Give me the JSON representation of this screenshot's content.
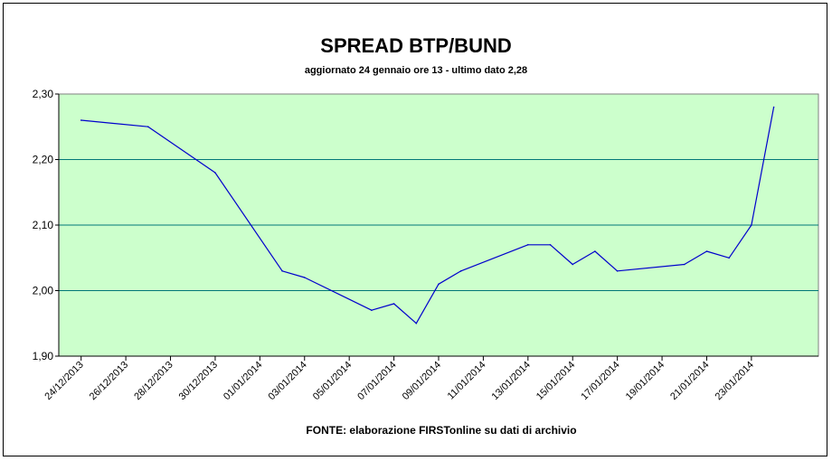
{
  "chart_data": {
    "type": "line",
    "title": "SPREAD BTP/BUND",
    "subtitle": "aggiornato 24 gennaio ore 13 - ultimo dato 2,28",
    "source": "FONTE: elaborazione FIRSTonline su dati di archivio",
    "xlabel": "",
    "ylabel": "",
    "ylim": [
      1.9,
      2.3
    ],
    "yticks": [
      "1,90",
      "2,00",
      "2,10",
      "2,20",
      "2,30"
    ],
    "xticks": [
      "24/12/2013",
      "26/12/2013",
      "28/12/2013",
      "30/12/2013",
      "01/01/2014",
      "03/01/2014",
      "05/01/2014",
      "07/01/2014",
      "09/01/2014",
      "11/01/2014",
      "13/01/2014",
      "15/01/2014",
      "17/01/2014",
      "19/01/2014",
      "21/01/2014",
      "23/01/2014"
    ],
    "grid": true,
    "legend": "none",
    "colors": {
      "plot_background": "#ccffcc",
      "line": "#0000cc",
      "grid": "#007777"
    },
    "series": [
      {
        "x": [
          "2013-12-24",
          "2013-12-27",
          "2013-12-30",
          "2014-01-02",
          "2014-01-03",
          "2014-01-06",
          "2014-01-07",
          "2014-01-08",
          "2014-01-09",
          "2014-01-10",
          "2014-01-13",
          "2014-01-14",
          "2014-01-15",
          "2014-01-16",
          "2014-01-17",
          "2014-01-20",
          "2014-01-21",
          "2014-01-22",
          "2014-01-23",
          "2014-01-24"
        ],
        "values": [
          2.26,
          2.25,
          2.18,
          2.03,
          2.02,
          1.97,
          1.98,
          1.95,
          2.01,
          2.03,
          2.07,
          2.07,
          2.04,
          2.06,
          2.03,
          2.04,
          2.06,
          2.05,
          2.1,
          2.28
        ]
      }
    ]
  }
}
